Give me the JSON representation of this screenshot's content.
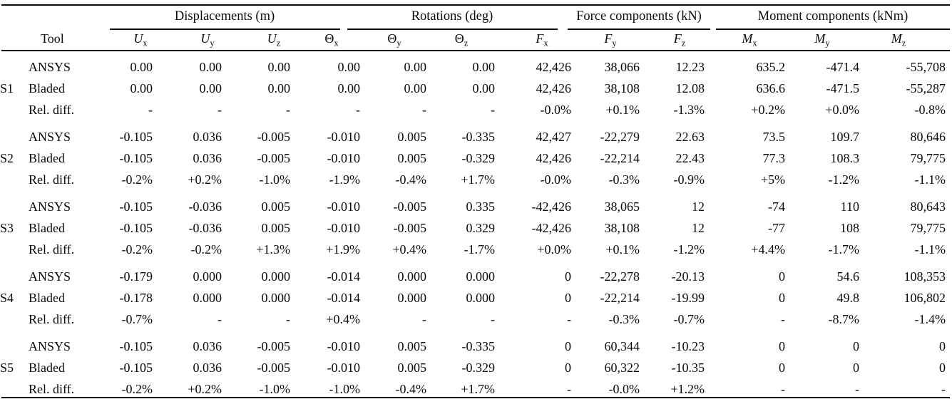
{
  "page": {
    "background": "#ffffff",
    "text_color": "#0a0a0a"
  },
  "table": {
    "groups": [
      {
        "label": "Displacements (m)"
      },
      {
        "label": "Rotations (deg)"
      },
      {
        "label": "Force components (kN)"
      },
      {
        "label": "Moment components (kNm)"
      }
    ],
    "tool_header": "Tool",
    "columns": [
      {
        "base": "U",
        "sub": "x"
      },
      {
        "base": "U",
        "sub": "y"
      },
      {
        "base": "U",
        "sub": "z"
      },
      {
        "base": "Θ",
        "sub": "x"
      },
      {
        "base": "Θ",
        "sub": "y"
      },
      {
        "base": "Θ",
        "sub": "z"
      },
      {
        "base": "F",
        "sub": "x"
      },
      {
        "base": "F",
        "sub": "y"
      },
      {
        "base": "F",
        "sub": "z"
      },
      {
        "base": "M",
        "sub": "x"
      },
      {
        "base": "M",
        "sub": "y"
      },
      {
        "base": "M",
        "sub": "z"
      }
    ],
    "sections": [
      {
        "label": "S1",
        "rows": [
          {
            "tool": "ANSYS",
            "values": [
              "0.00",
              "0.00",
              "0.00",
              "0.00",
              "0.00",
              "0.00",
              "42,426",
              "38,066",
              "12.23",
              "635.2",
              "-471.4",
              "-55,708"
            ]
          },
          {
            "tool": "Bladed",
            "values": [
              "0.00",
              "0.00",
              "0.00",
              "0.00",
              "0.00",
              "0.00",
              "42,426",
              "38,108",
              "12.08",
              "636.6",
              "-471.5",
              "-55,287"
            ]
          },
          {
            "tool": "Rel. diff.",
            "values": [
              "-",
              "-",
              "-",
              "-",
              "-",
              "-",
              "-0.0%",
              "+0.1%",
              "-1.3%",
              "+0.2%",
              "+0.0%",
              "-0.8%"
            ]
          }
        ]
      },
      {
        "label": "S2",
        "rows": [
          {
            "tool": "ANSYS",
            "values": [
              "-0.105",
              "0.036",
              "-0.005",
              "-0.010",
              "0.005",
              "-0.335",
              "42,427",
              "-22,279",
              "22.63",
              "73.5",
              "109.7",
              "80,646"
            ]
          },
          {
            "tool": "Bladed",
            "values": [
              "-0.105",
              "0.036",
              "-0.005",
              "-0.010",
              "0.005",
              "-0.329",
              "42,426",
              "-22,214",
              "22.43",
              "77.3",
              "108.3",
              "79,775"
            ]
          },
          {
            "tool": "Rel. diff.",
            "values": [
              "-0.2%",
              "+0.2%",
              "-1.0%",
              "-1.9%",
              "-0.4%",
              "+1.7%",
              "-0.0%",
              "-0.3%",
              "-0.9%",
              "+5%",
              "-1.2%",
              "-1.1%"
            ]
          }
        ]
      },
      {
        "label": "S3",
        "rows": [
          {
            "tool": "ANSYS",
            "values": [
              "-0.105",
              "-0.036",
              "0.005",
              "-0.010",
              "-0.005",
              "0.335",
              "-42,426",
              "38,065",
              "12",
              "-74",
              "110",
              "80,643"
            ]
          },
          {
            "tool": "Bladed",
            "values": [
              "-0.105",
              "-0.036",
              "0.005",
              "-0.010",
              "-0.005",
              "0.329",
              "-42,426",
              "38,108",
              "12",
              "-77",
              "108",
              "79,775"
            ]
          },
          {
            "tool": "Rel. diff.",
            "values": [
              "-0.2%",
              "-0.2%",
              "+1.3%",
              "+1.9%",
              "+0.4%",
              "-1.7%",
              "+0.0%",
              "+0.1%",
              "-1.2%",
              "+4.4%",
              "-1.7%",
              "-1.1%"
            ]
          }
        ]
      },
      {
        "label": "S4",
        "rows": [
          {
            "tool": "ANSYS",
            "values": [
              "-0.179",
              "0.000",
              "0.000",
              "-0.014",
              "0.000",
              "0.000",
              "0",
              "-22,278",
              "-20.13",
              "0",
              "54.6",
              "108,353"
            ]
          },
          {
            "tool": "Bladed",
            "values": [
              "-0.178",
              "0.000",
              "0.000",
              "-0.014",
              "0.000",
              "0.000",
              "0",
              "-22,214",
              "-19.99",
              "0",
              "49.8",
              "106,802"
            ]
          },
          {
            "tool": "Rel. diff.",
            "values": [
              "-0.7%",
              "-",
              "-",
              "+0.4%",
              "-",
              "-",
              "-",
              "-0.3%",
              "-0.7%",
              "-",
              "-8.7%",
              "-1.4%"
            ]
          }
        ]
      },
      {
        "label": "S5",
        "rows": [
          {
            "tool": "ANSYS",
            "values": [
              "-0.105",
              "0.036",
              "-0.005",
              "-0.010",
              "0.005",
              "-0.335",
              "0",
              "60,344",
              "-10.23",
              "0",
              "0",
              "0"
            ]
          },
          {
            "tool": "Bladed",
            "values": [
              "-0.105",
              "0.036",
              "-0.005",
              "-0.010",
              "0.005",
              "-0.329",
              "0",
              "60,322",
              "-10.35",
              "0",
              "0",
              "0"
            ]
          },
          {
            "tool": "Rel. diff.",
            "values": [
              "-0.2%",
              "+0.2%",
              "-1.0%",
              "-1.0%",
              "-0.4%",
              "+1.7%",
              "-",
              "-0.0%",
              "+1.2%",
              "-",
              "-",
              "-"
            ]
          }
        ]
      }
    ]
  }
}
